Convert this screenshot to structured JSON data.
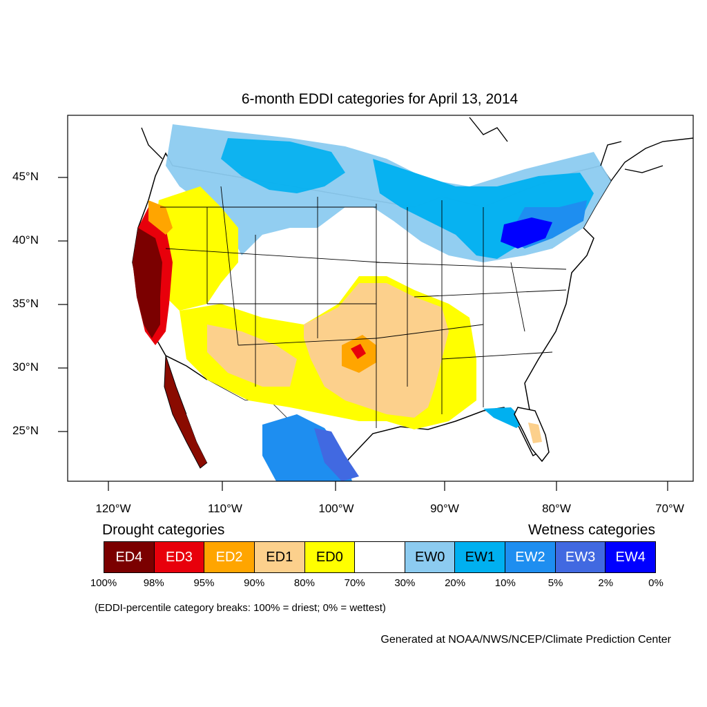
{
  "title": "6-month EDDI categories for April 13, 2014",
  "lat_ticks": [
    "45°N",
    "40°N",
    "35°N",
    "30°N",
    "25°N"
  ],
  "lon_ticks": [
    "120°W",
    "110°W",
    "100°W",
    "90°W",
    "80°W",
    "70°W"
  ],
  "legend": {
    "drought_heading": "Drought categories",
    "wetness_heading": "Wetness categories",
    "categories": [
      {
        "label": "ED4",
        "color": "#7b0000",
        "text_color": "#ffffff"
      },
      {
        "label": "ED3",
        "color": "#e8000b",
        "text_color": "#ffffff"
      },
      {
        "label": "ED2",
        "color": "#ffa500",
        "text_color": "#ffffff"
      },
      {
        "label": "ED1",
        "color": "#fcd08c",
        "text_color": "#000000"
      },
      {
        "label": "ED0",
        "color": "#ffff00",
        "text_color": "#000000"
      },
      {
        "label": "",
        "color": "#ffffff",
        "text_color": "#000000"
      },
      {
        "label": "EW0",
        "color": "#8ccbf0",
        "text_color": "#000000"
      },
      {
        "label": "EW1",
        "color": "#00b0f0",
        "text_color": "#000000"
      },
      {
        "label": "EW2",
        "color": "#1e8ef0",
        "text_color": "#ffffff"
      },
      {
        "label": "EW3",
        "color": "#4169e1",
        "text_color": "#ffffff"
      },
      {
        "label": "EW4",
        "color": "#0000ff",
        "text_color": "#ffffff"
      }
    ],
    "percentiles": [
      "100%",
      "98%",
      "95%",
      "90%",
      "80%",
      "70%",
      "30%",
      "20%",
      "10%",
      "5%",
      "2%",
      "0%"
    ]
  },
  "footnote": "(EDDI-percentile category breaks: 100% = driest; 0% = wettest)",
  "credit": "Generated at NOAA/NWS/NCEP/Climate Prediction Center"
}
